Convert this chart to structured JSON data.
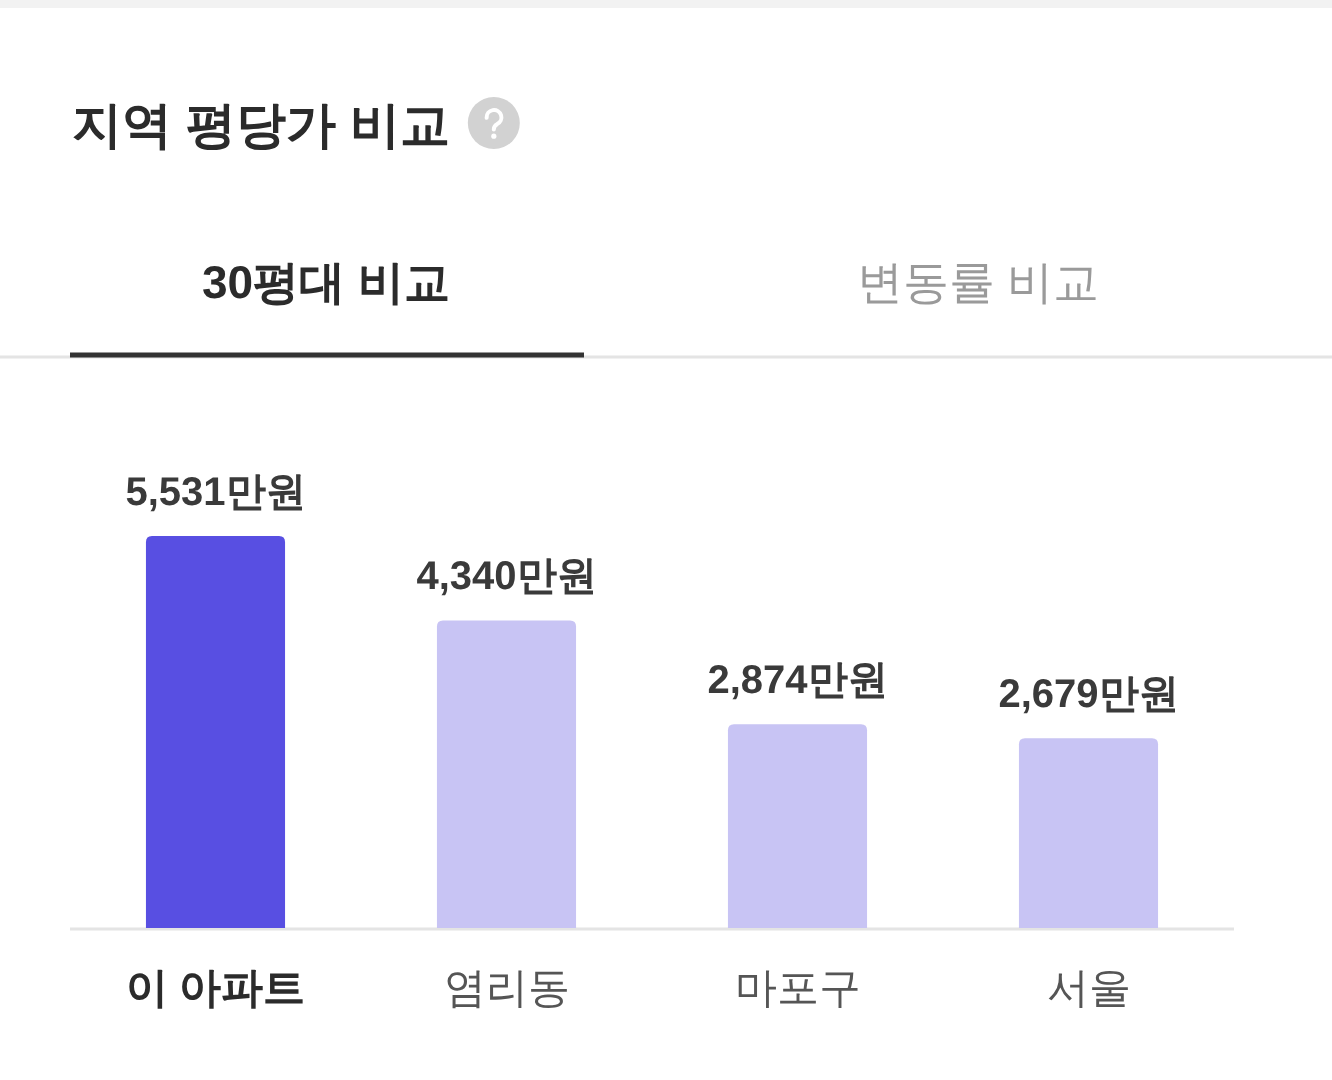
{
  "chart_data": {
    "type": "bar",
    "title": "지역 평당가 비교",
    "annotations": [
      "30평대 비교",
      "변동률 비교"
    ],
    "categories": [
      "이 아파트",
      "염리동",
      "마포구",
      "서울"
    ],
    "values": [
      5531,
      4340,
      2874,
      2679
    ],
    "colors": [
      "#584fe2",
      "#c8c4f4",
      "#c8c4f4",
      "#c8c4f4"
    ],
    "value_labels": [
      "5,531만원",
      "4,340만원",
      "2,874만원",
      "2,679만원"
    ],
    "tick_labels": "x"
  }
}
